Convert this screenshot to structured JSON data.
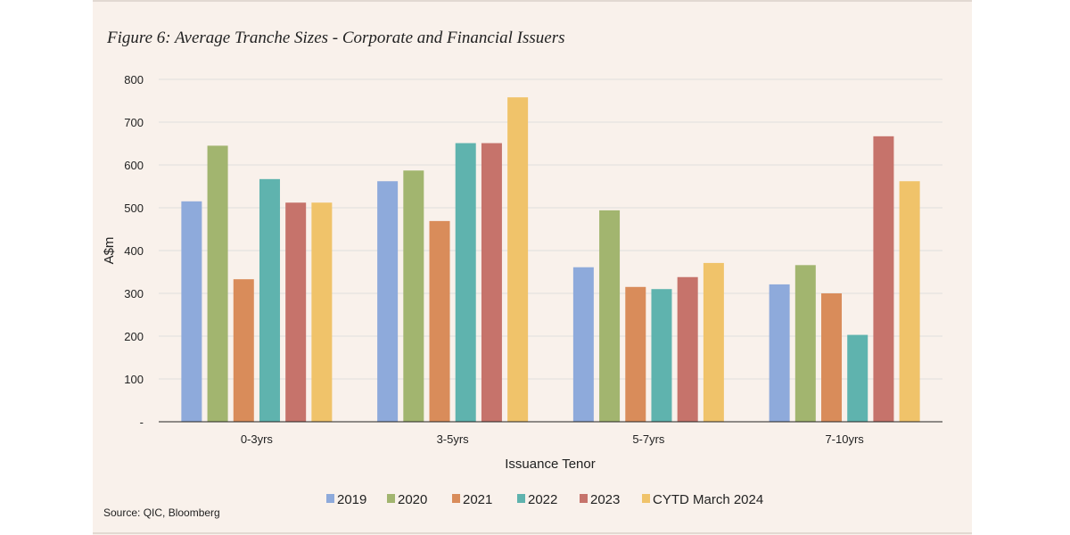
{
  "chart_data": {
    "type": "bar",
    "title": "Figure 6: Average Tranche Sizes - Corporate and Financial Issuers",
    "xlabel": "Issuance Tenor",
    "ylabel": "A$m",
    "ylim": [
      0,
      800
    ],
    "yticks": [
      0,
      100,
      200,
      300,
      400,
      500,
      600,
      700,
      800
    ],
    "ytick_labels": [
      "-",
      "100",
      "200",
      "300",
      "400",
      "500",
      "600",
      "700",
      "800"
    ],
    "grid": true,
    "legend_position": "bottom",
    "categories": [
      "0-3yrs",
      "3-5yrs",
      "5-7yrs",
      "7-10yrs"
    ],
    "series": [
      {
        "name": "2019",
        "color": "#8eaadb",
        "values": [
          515,
          562,
          361,
          321
        ]
      },
      {
        "name": "2020",
        "color": "#a2b56f",
        "values": [
          645,
          587,
          494,
          366
        ]
      },
      {
        "name": "2021",
        "color": "#d98c5a",
        "values": [
          333,
          469,
          315,
          300
        ]
      },
      {
        "name": "2022",
        "color": "#5fb3ae",
        "values": [
          567,
          651,
          310,
          203
        ]
      },
      {
        "name": "2023",
        "color": "#c6736b",
        "values": [
          512,
          651,
          338,
          667
        ]
      },
      {
        "name": "CYTD March 2024",
        "color": "#f0c36a",
        "values": [
          512,
          758,
          371,
          562
        ]
      }
    ],
    "source": "Source: QIC, Bloomberg"
  }
}
